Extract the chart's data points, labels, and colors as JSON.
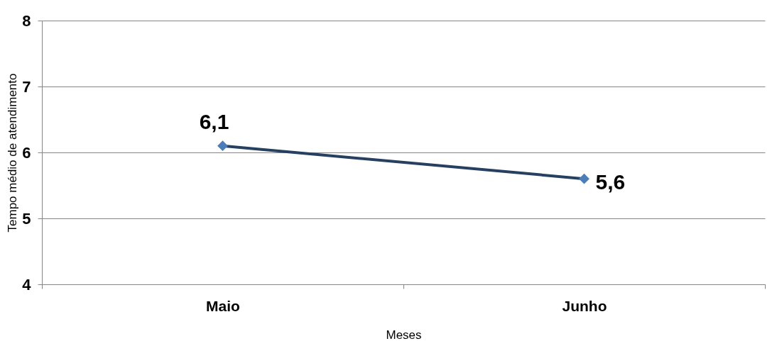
{
  "chart_data": {
    "type": "line",
    "xlabel": "Meses",
    "ylabel": "Tempo médio de atendimento",
    "categories": [
      "Maio",
      "Junho"
    ],
    "series": [
      {
        "color": "#254061",
        "values": [
          6.1,
          5.6
        ],
        "value_labels": [
          "6,1",
          "5,6"
        ]
      }
    ],
    "ylim": [
      4,
      8
    ],
    "yticks": [
      4,
      5,
      6,
      7,
      8
    ],
    "grid": "y",
    "marker": "diamond",
    "line_style": "solid"
  }
}
